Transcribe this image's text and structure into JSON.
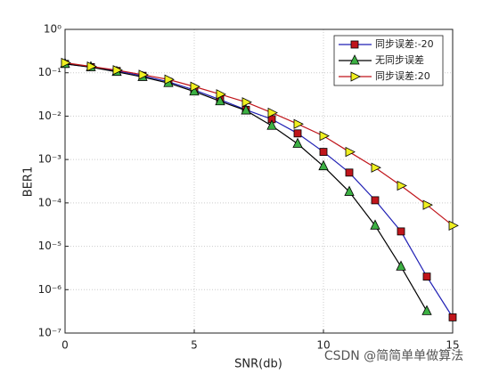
{
  "chart_data": {
    "type": "line",
    "xlabel": "SNR(db)",
    "ylabel": "BER1",
    "x": [
      0,
      1,
      2,
      3,
      4,
      5,
      6,
      7,
      8,
      9,
      10,
      11,
      12,
      13,
      14,
      15
    ],
    "series": [
      {
        "name": "同步误差:-20",
        "color": "#1f1fb4",
        "marker": "s",
        "marker_color": "#c0151b",
        "values": [
          0.16,
          0.135,
          0.11,
          0.085,
          0.062,
          0.04,
          0.024,
          0.014,
          0.0085,
          0.004,
          0.0015,
          0.0005,
          0.000115,
          2.2e-05,
          2e-06,
          2.3e-07
        ]
      },
      {
        "name": "无同步误差",
        "color": "#000000",
        "marker": "^",
        "marker_color": "#3cb043",
        "values": [
          0.16,
          0.135,
          0.105,
          0.08,
          0.058,
          0.037,
          0.022,
          0.0135,
          0.006,
          0.0023,
          0.0007,
          0.00018,
          3e-05,
          3.4e-06,
          3.2e-07,
          null
        ]
      },
      {
        "name": "同步误差:20",
        "color": "#c0151b",
        "marker": ">",
        "marker_color": "#f0f020",
        "values": [
          0.17,
          0.14,
          0.115,
          0.09,
          0.07,
          0.048,
          0.032,
          0.021,
          0.012,
          0.0066,
          0.0035,
          0.0015,
          0.00065,
          0.00025,
          9e-05,
          3e-05
        ]
      }
    ],
    "xlim": [
      0,
      15
    ],
    "xticks": [
      0,
      5,
      10,
      15
    ],
    "ylim": [
      1e-07,
      1
    ],
    "ylog": true,
    "yticks": [
      {
        "value": 1e-07,
        "label": "10⁻⁷"
      },
      {
        "value": 1e-06,
        "label": "10⁻⁶"
      },
      {
        "value": 1e-05,
        "label": "10⁻⁵"
      },
      {
        "value": 0.0001,
        "label": "10⁻⁴"
      },
      {
        "value": 0.001,
        "label": "10⁻³"
      },
      {
        "value": 0.01,
        "label": "10⁻²"
      },
      {
        "value": 0.1,
        "label": "10⁻¹"
      },
      {
        "value": 1,
        "label": "10⁰"
      }
    ],
    "grid": true,
    "legend": "upper right"
  },
  "watermark": "CSDN @简简单单做算法"
}
